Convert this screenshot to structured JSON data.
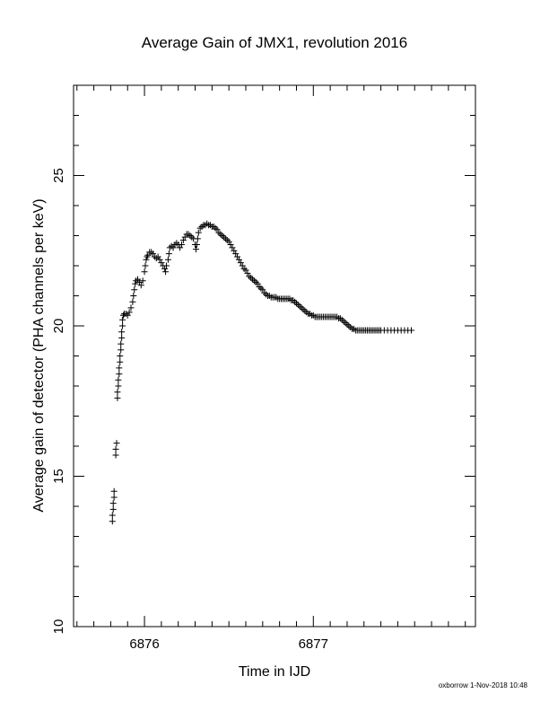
{
  "chart_data": {
    "type": "scatter",
    "title": "Average Gain of JMX1, revolution 2016",
    "xlabel": "Time in IJD",
    "ylabel": "Average gain of detector (PHA channels per keV)",
    "xlim": [
      6875.58,
      6877.96
    ],
    "ylim": [
      10,
      28
    ],
    "x_ticks": [
      6876,
      6877
    ],
    "y_ticks": [
      10,
      15,
      20,
      25
    ],
    "x_minor_step": 0.1,
    "y_minor_step": 1,
    "grid": false,
    "marker": "plus",
    "color": "#000000",
    "points": [
      [
        6875.81,
        13.5
      ],
      [
        6875.81,
        13.7
      ],
      [
        6875.815,
        13.9
      ],
      [
        6875.815,
        14.1
      ],
      [
        6875.82,
        14.3
      ],
      [
        6875.82,
        14.5
      ],
      [
        6875.83,
        15.7
      ],
      [
        6875.83,
        15.9
      ],
      [
        6875.835,
        16.1
      ],
      [
        6875.84,
        17.6
      ],
      [
        6875.84,
        17.8
      ],
      [
        6875.845,
        18.0
      ],
      [
        6875.845,
        18.2
      ],
      [
        6875.85,
        18.4
      ],
      [
        6875.85,
        18.6
      ],
      [
        6875.855,
        18.8
      ],
      [
        6875.855,
        19.0
      ],
      [
        6875.86,
        19.2
      ],
      [
        6875.86,
        19.4
      ],
      [
        6875.865,
        19.6
      ],
      [
        6875.865,
        19.8
      ],
      [
        6875.87,
        20.0
      ],
      [
        6875.87,
        20.2
      ],
      [
        6875.875,
        20.35
      ],
      [
        6875.88,
        20.4
      ],
      [
        6875.89,
        20.4
      ],
      [
        6875.9,
        20.35
      ],
      [
        6875.91,
        20.45
      ],
      [
        6875.92,
        20.6
      ],
      [
        6875.93,
        20.8
      ],
      [
        6875.935,
        21.0
      ],
      [
        6875.94,
        21.2
      ],
      [
        6875.945,
        21.4
      ],
      [
        6875.95,
        21.5
      ],
      [
        6875.96,
        21.55
      ],
      [
        6875.97,
        21.45
      ],
      [
        6875.98,
        21.35
      ],
      [
        6875.99,
        21.5
      ],
      [
        6876.0,
        21.8
      ],
      [
        6876.005,
        22.0
      ],
      [
        6876.01,
        22.2
      ],
      [
        6876.015,
        22.3
      ],
      [
        6876.02,
        22.35
      ],
      [
        6876.03,
        22.45
      ],
      [
        6876.04,
        22.45
      ],
      [
        6876.05,
        22.4
      ],
      [
        6876.06,
        22.3
      ],
      [
        6876.07,
        22.25
      ],
      [
        6876.08,
        22.3
      ],
      [
        6876.09,
        22.2
      ],
      [
        6876.1,
        22.1
      ],
      [
        6876.11,
        22.0
      ],
      [
        6876.12,
        21.9
      ],
      [
        6876.125,
        21.8
      ],
      [
        6876.13,
        22.0
      ],
      [
        6876.14,
        22.2
      ],
      [
        6876.145,
        22.4
      ],
      [
        6876.15,
        22.6
      ],
      [
        6876.16,
        22.65
      ],
      [
        6876.17,
        22.6
      ],
      [
        6876.18,
        22.7
      ],
      [
        6876.19,
        22.75
      ],
      [
        6876.2,
        22.7
      ],
      [
        6876.21,
        22.6
      ],
      [
        6876.22,
        22.7
      ],
      [
        6876.23,
        22.85
      ],
      [
        6876.24,
        22.95
      ],
      [
        6876.25,
        23.05
      ],
      [
        6876.26,
        23.05
      ],
      [
        6876.27,
        23.0
      ],
      [
        6876.28,
        22.95
      ],
      [
        6876.29,
        22.9
      ],
      [
        6876.3,
        22.7
      ],
      [
        6876.305,
        22.55
      ],
      [
        6876.31,
        22.7
      ],
      [
        6876.315,
        22.9
      ],
      [
        6876.32,
        23.1
      ],
      [
        6876.33,
        23.25
      ],
      [
        6876.34,
        23.3
      ],
      [
        6876.35,
        23.35
      ],
      [
        6876.36,
        23.35
      ],
      [
        6876.37,
        23.4
      ],
      [
        6876.38,
        23.35
      ],
      [
        6876.39,
        23.35
      ],
      [
        6876.4,
        23.3
      ],
      [
        6876.41,
        23.3
      ],
      [
        6876.42,
        23.25
      ],
      [
        6876.43,
        23.2
      ],
      [
        6876.44,
        23.1
      ],
      [
        6876.45,
        23.05
      ],
      [
        6876.46,
        23.0
      ],
      [
        6876.47,
        22.95
      ],
      [
        6876.48,
        22.9
      ],
      [
        6876.49,
        22.85
      ],
      [
        6876.5,
        22.8
      ],
      [
        6876.51,
        22.7
      ],
      [
        6876.52,
        22.6
      ],
      [
        6876.53,
        22.5
      ],
      [
        6876.54,
        22.4
      ],
      [
        6876.55,
        22.3
      ],
      [
        6876.56,
        22.2
      ],
      [
        6876.57,
        22.1
      ],
      [
        6876.58,
        22.0
      ],
      [
        6876.59,
        21.9
      ],
      [
        6876.6,
        21.85
      ],
      [
        6876.61,
        21.75
      ],
      [
        6876.62,
        21.65
      ],
      [
        6876.63,
        21.6
      ],
      [
        6876.64,
        21.55
      ],
      [
        6876.65,
        21.5
      ],
      [
        6876.66,
        21.45
      ],
      [
        6876.67,
        21.4
      ],
      [
        6876.68,
        21.3
      ],
      [
        6876.69,
        21.25
      ],
      [
        6876.7,
        21.2
      ],
      [
        6876.71,
        21.1
      ],
      [
        6876.72,
        21.05
      ],
      [
        6876.73,
        21.0
      ],
      [
        6876.74,
        21.0
      ],
      [
        6876.75,
        20.95
      ],
      [
        6876.76,
        20.95
      ],
      [
        6876.77,
        20.95
      ],
      [
        6876.78,
        20.95
      ],
      [
        6876.79,
        20.9
      ],
      [
        6876.8,
        20.9
      ],
      [
        6876.81,
        20.9
      ],
      [
        6876.82,
        20.9
      ],
      [
        6876.83,
        20.9
      ],
      [
        6876.84,
        20.9
      ],
      [
        6876.85,
        20.9
      ],
      [
        6876.86,
        20.9
      ],
      [
        6876.87,
        20.85
      ],
      [
        6876.88,
        20.85
      ],
      [
        6876.89,
        20.8
      ],
      [
        6876.9,
        20.75
      ],
      [
        6876.91,
        20.7
      ],
      [
        6876.92,
        20.65
      ],
      [
        6876.93,
        20.6
      ],
      [
        6876.94,
        20.55
      ],
      [
        6876.95,
        20.5
      ],
      [
        6876.96,
        20.45
      ],
      [
        6876.97,
        20.4
      ],
      [
        6876.98,
        20.4
      ],
      [
        6876.99,
        20.35
      ],
      [
        6877.0,
        20.35
      ],
      [
        6877.01,
        20.3
      ],
      [
        6877.02,
        20.3
      ],
      [
        6877.03,
        20.3
      ],
      [
        6877.04,
        20.3
      ],
      [
        6877.05,
        20.3
      ],
      [
        6877.06,
        20.3
      ],
      [
        6877.07,
        20.3
      ],
      [
        6877.08,
        20.3
      ],
      [
        6877.09,
        20.3
      ],
      [
        6877.1,
        20.3
      ],
      [
        6877.11,
        20.3
      ],
      [
        6877.12,
        20.3
      ],
      [
        6877.13,
        20.3
      ],
      [
        6877.14,
        20.3
      ],
      [
        6877.15,
        20.25
      ],
      [
        6877.16,
        20.25
      ],
      [
        6877.17,
        20.2
      ],
      [
        6877.18,
        20.15
      ],
      [
        6877.19,
        20.1
      ],
      [
        6877.2,
        20.05
      ],
      [
        6877.21,
        20.0
      ],
      [
        6877.22,
        19.95
      ],
      [
        6877.23,
        19.9
      ],
      [
        6877.24,
        19.9
      ],
      [
        6877.25,
        19.85
      ],
      [
        6877.26,
        19.85
      ],
      [
        6877.27,
        19.85
      ],
      [
        6877.28,
        19.85
      ],
      [
        6877.29,
        19.85
      ],
      [
        6877.3,
        19.85
      ],
      [
        6877.31,
        19.85
      ],
      [
        6877.32,
        19.85
      ],
      [
        6877.33,
        19.85
      ],
      [
        6877.34,
        19.85
      ],
      [
        6877.35,
        19.85
      ],
      [
        6877.36,
        19.85
      ],
      [
        6877.37,
        19.85
      ],
      [
        6877.38,
        19.85
      ],
      [
        6877.39,
        19.85
      ],
      [
        6877.4,
        19.85
      ],
      [
        6877.42,
        19.85
      ],
      [
        6877.44,
        19.85
      ],
      [
        6877.46,
        19.85
      ],
      [
        6877.48,
        19.85
      ],
      [
        6877.5,
        19.85
      ],
      [
        6877.52,
        19.85
      ],
      [
        6877.54,
        19.85
      ],
      [
        6877.56,
        19.85
      ],
      [
        6877.58,
        19.85
      ]
    ]
  },
  "footer": {
    "stamp": "oxborrow  1-Nov-2018 10:48"
  }
}
